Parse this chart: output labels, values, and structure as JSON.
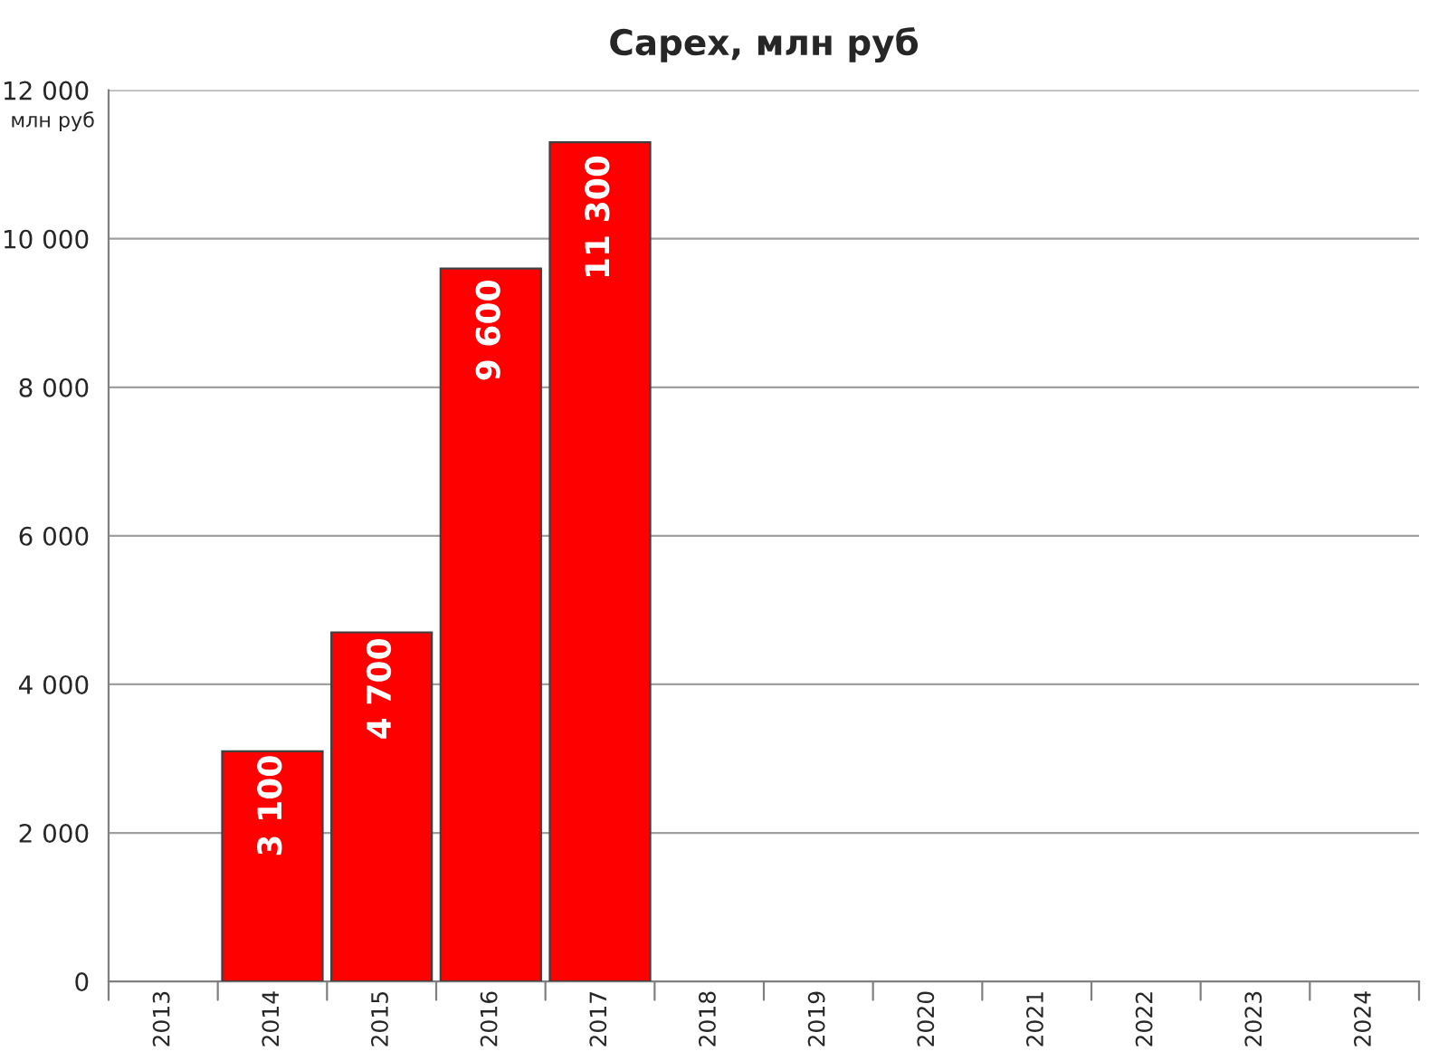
{
  "chart_data": {
    "type": "bar",
    "title": "Capex, млн руб",
    "ylabel": "млн руб",
    "categories": [
      "2013",
      "2014",
      "2015",
      "2016",
      "2017",
      "2018",
      "2019",
      "2020",
      "2021",
      "2022",
      "2023",
      "2024"
    ],
    "values": [
      null,
      3100,
      4700,
      9600,
      11300,
      null,
      null,
      null,
      null,
      null,
      null,
      null
    ],
    "value_labels": [
      null,
      "3 100",
      "4 700",
      "9 600",
      "11 300",
      null,
      null,
      null,
      null,
      null,
      null,
      null
    ],
    "color": "#ff0000",
    "ylim": [
      0,
      12000
    ],
    "yticks": [
      {
        "value": 0,
        "label": "0"
      },
      {
        "value": 2000,
        "label": "2 000"
      },
      {
        "value": 4000,
        "label": "4 000"
      },
      {
        "value": 6000,
        "label": "6 000"
      },
      {
        "value": 8000,
        "label": "8 000"
      },
      {
        "value": 10000,
        "label": "10 000"
      },
      {
        "value": 12000,
        "label": "12 000"
      }
    ],
    "grid": "y"
  }
}
